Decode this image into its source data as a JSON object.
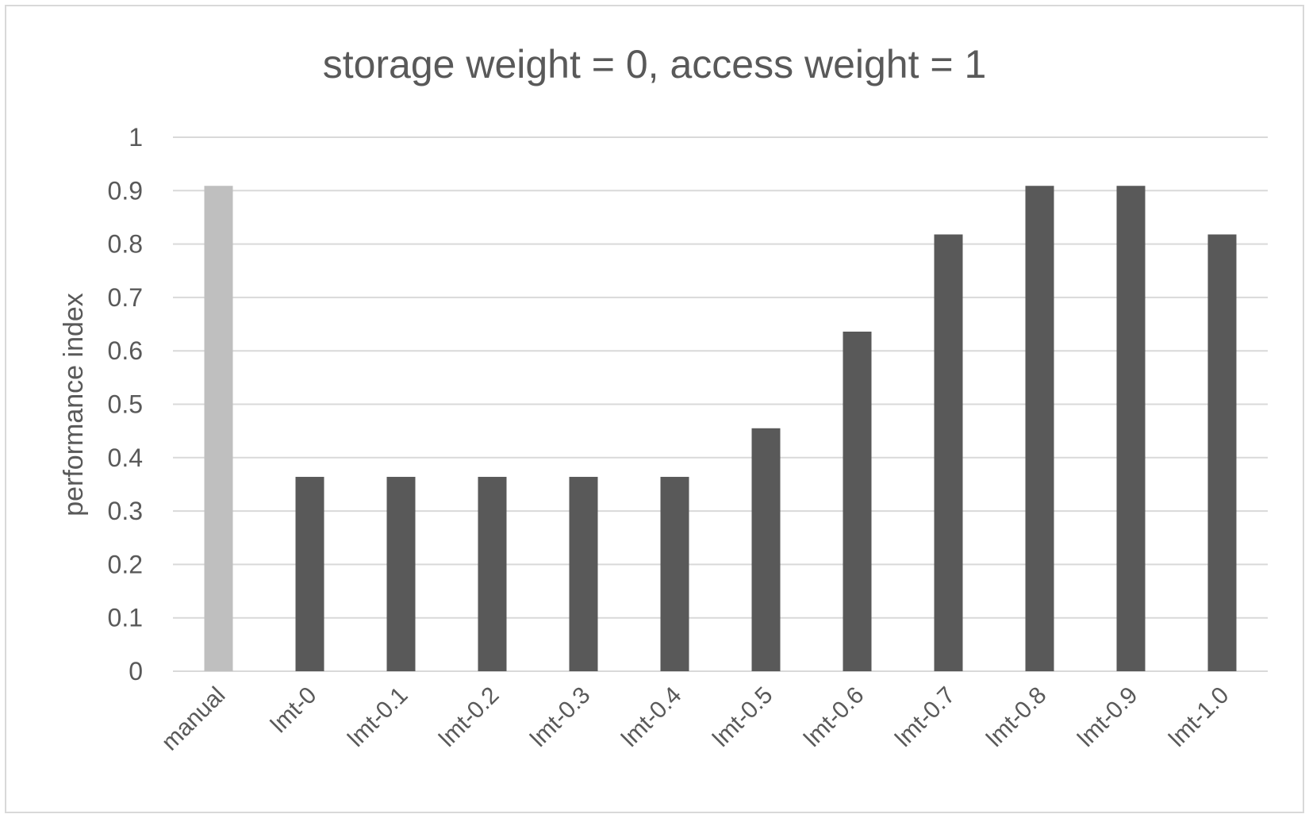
{
  "chart_data": {
    "type": "bar",
    "title": "storage weight = 0, access weight = 1",
    "xlabel": "",
    "ylabel": "performance index",
    "ylim": [
      0,
      1
    ],
    "yticks": [
      "0",
      "0.1",
      "0.2",
      "0.3",
      "0.4",
      "0.5",
      "0.6",
      "0.7",
      "0.8",
      "0.9",
      "1"
    ],
    "grid": true,
    "categories": [
      "manual",
      "lmt-0",
      "lmt-0.1",
      "lmt-0.2",
      "lmt-0.3",
      "lmt-0.4",
      "lmt-0.5",
      "lmt-0.6",
      "lmt-0.7",
      "lmt-0.8",
      "lmt-0.9",
      "lmt-1.0"
    ],
    "values": [
      0.909,
      0.364,
      0.364,
      0.364,
      0.364,
      0.364,
      0.455,
      0.636,
      0.818,
      0.909,
      0.909,
      0.818
    ],
    "bar_colors": [
      "#bfbfbf",
      "#595959",
      "#595959",
      "#595959",
      "#595959",
      "#595959",
      "#595959",
      "#595959",
      "#595959",
      "#595959",
      "#595959",
      "#595959"
    ],
    "grid_color": "#d9d9d9"
  }
}
